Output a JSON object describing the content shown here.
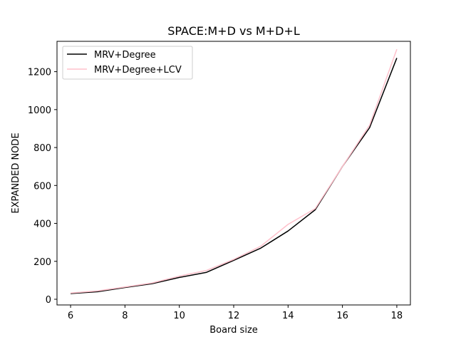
{
  "chart_data": {
    "type": "line",
    "title": "SPACE:M+D vs M+D+L",
    "xlabel": "Board size",
    "ylabel": "EXPANDED NODE",
    "xlim": [
      5.5,
      18.5
    ],
    "ylim": [
      -30,
      1360
    ],
    "xticks": [
      6,
      8,
      10,
      12,
      14,
      16,
      18
    ],
    "yticks": [
      0,
      200,
      400,
      600,
      800,
      1000,
      1200
    ],
    "grid": false,
    "legend_position": "top-left",
    "x": [
      6,
      7,
      8,
      9,
      10,
      11,
      12,
      13,
      14,
      15,
      16,
      17,
      18
    ],
    "series": [
      {
        "name": "MRV+Degree",
        "color": "#000000",
        "values": [
          30,
          40,
          62,
          82,
          115,
          142,
          205,
          270,
          360,
          472,
          700,
          905,
          1272
        ]
      },
      {
        "name": "MRV+Degree+LCV",
        "color": "#ffc0cb",
        "values": [
          33,
          44,
          65,
          86,
          122,
          152,
          210,
          280,
          395,
          478,
          700,
          918,
          1318
        ]
      }
    ]
  }
}
